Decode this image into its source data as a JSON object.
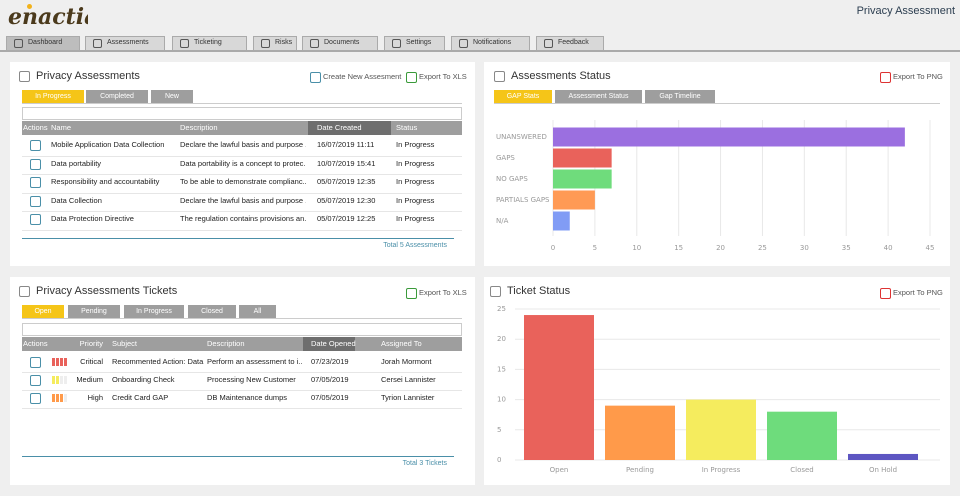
{
  "header": {
    "logo": "enactia",
    "title": "Privacy Assessment"
  },
  "nav": {
    "tabs": [
      "Dashboard",
      "Assessments",
      "Ticketing",
      "Risks",
      "Documents",
      "Settings",
      "Notifications",
      "Feedback"
    ]
  },
  "assessments_panel": {
    "title": "Privacy Assessments",
    "actions": [
      "Create New Assesment",
      "Export To XLS"
    ],
    "tabs": [
      "In Progress",
      "Completed",
      "New"
    ],
    "columns": [
      "Actions",
      "Name",
      "Description",
      "Date Created",
      "Status"
    ],
    "rows": [
      [
        "Mobile Application Data Collection",
        "Declare the lawful basis and purpose ...",
        "16/07/2019 11:11",
        "In Progress"
      ],
      [
        "Data portability",
        "Data portability is a concept to protec...",
        "10/07/2019 15:41",
        "In Progress"
      ],
      [
        "Responsibility and accountability",
        "To be able to demonstrate complianc...",
        "05/07/2019 12:35",
        "In Progress"
      ],
      [
        "Data Collection",
        "Declare the lawful basis and purpose ...",
        "05/07/2019 12:30",
        "In Progress"
      ],
      [
        "Data Protection Directive",
        "The regulation contains provisions an...",
        "05/07/2019 12:25",
        "In Progress"
      ]
    ],
    "footer": "Total 5 Assessments"
  },
  "status_panel": {
    "title": "Assessments Status",
    "export": "Export To PNG",
    "tabs": [
      "GAP Stats",
      "Assessment Status",
      "Gap Timeline"
    ],
    "chart": {
      "type": "bar",
      "horizontal": true,
      "categories": [
        "UNANSWERED",
        "GAPS",
        "NO GAPS",
        "PARTIALS GAPS",
        "N/A"
      ],
      "values": [
        42,
        7,
        7,
        5,
        2
      ],
      "colors": [
        "#9b6fe0",
        "#e9625b",
        "#6fdc7c",
        "#ff9a55",
        "#819cf5"
      ],
      "xlim": [
        0,
        45
      ],
      "xticks": [
        0,
        5,
        10,
        15,
        20,
        25,
        30,
        35,
        40,
        45
      ],
      "grid": true
    }
  },
  "tickets_panel": {
    "title": "Privacy Assessments Tickets",
    "export": "Export To XLS",
    "tabs": [
      "Open",
      "Pending",
      "In Progress",
      "Closed",
      "All"
    ],
    "columns": [
      "Actions",
      "Priority",
      "Subject",
      "Description",
      "Date Opened",
      "Assigned To"
    ],
    "rows": [
      [
        "Critical",
        "Recommented Action: Data...",
        "Perform an assessment to i...",
        "07/23/2019",
        "Jorah Mormont"
      ],
      [
        "Medium",
        "Onboarding Check",
        "Processing New Customer",
        "07/05/2019",
        "Cersei Lannister"
      ],
      [
        "High",
        "Credit Card GAP",
        "DB Maintenance dumps",
        "07/05/2019",
        "Tyrion Lannister"
      ]
    ],
    "footer": "Total 3 Tickets"
  },
  "ticket_status_panel": {
    "title": "Ticket Status",
    "export": "Export To PNG",
    "chart": {
      "type": "bar",
      "horizontal": false,
      "categories": [
        "Open",
        "Pending",
        "In Progress",
        "Closed",
        "On Hold"
      ],
      "values": [
        24,
        9,
        10,
        8,
        1
      ],
      "colors": [
        "#e9625b",
        "#ff9a4a",
        "#f5ec5e",
        "#6edc7c",
        "#5d56c2"
      ],
      "ylim": [
        0,
        25
      ],
      "yticks": [
        0,
        5,
        10,
        15,
        20,
        25
      ],
      "grid": true
    }
  }
}
